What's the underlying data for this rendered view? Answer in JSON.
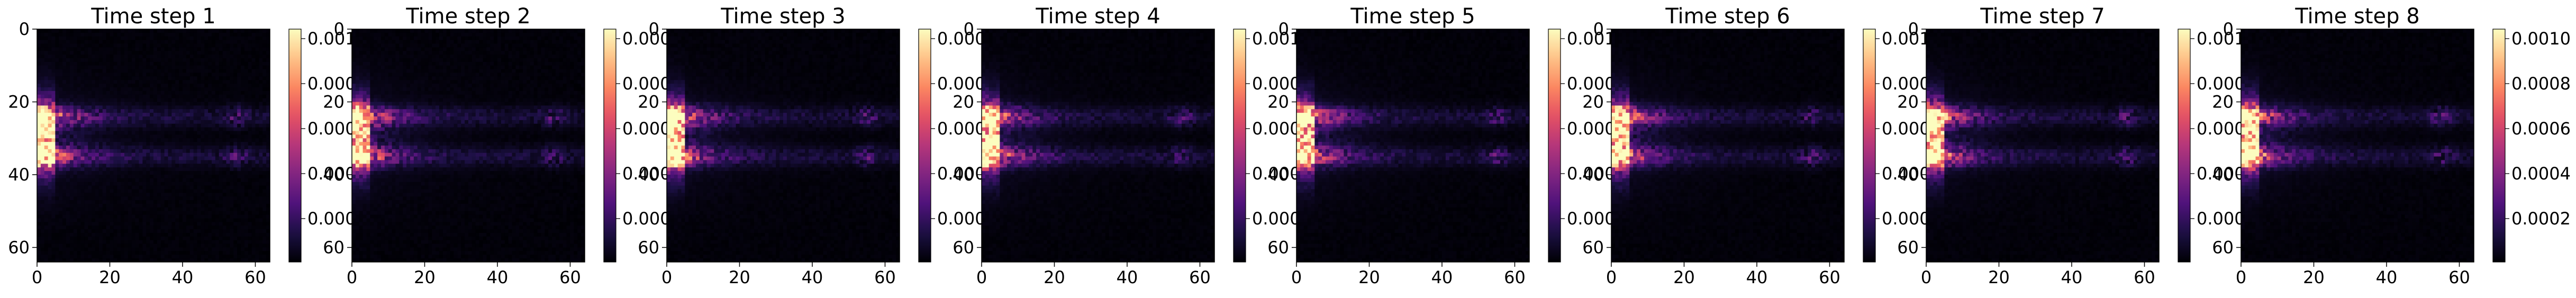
{
  "figure": {
    "background": "#ffffff"
  },
  "chart_data": [
    {
      "type": "heatmap",
      "title": "Time step 1",
      "xticks": [
        "0",
        "20",
        "40",
        "60"
      ],
      "yticks": [
        "0",
        "20",
        "40",
        "60"
      ],
      "xlim": [
        0,
        64
      ],
      "ylim": [
        64,
        0
      ],
      "colormap": "magma",
      "colorbar": {
        "ticks": [
          "0.001",
          "0.000",
          "0.000",
          "0.000",
          "0.000"
        ],
        "clipped": true
      }
    },
    {
      "type": "heatmap",
      "title": "Time step 2",
      "xticks": [
        "0",
        "20",
        "40",
        "60"
      ],
      "yticks": [
        "0",
        "20",
        "40",
        "60"
      ],
      "xlim": [
        0,
        64
      ],
      "ylim": [
        64,
        0
      ],
      "colormap": "magma",
      "colorbar": {
        "ticks": [
          "0.000",
          "0.000",
          "0.000",
          "0.000",
          "0.000"
        ],
        "clipped": true
      }
    },
    {
      "type": "heatmap",
      "title": "Time step 3",
      "xticks": [
        "0",
        "20",
        "40",
        "60"
      ],
      "yticks": [
        "0",
        "20",
        "40",
        "60"
      ],
      "xlim": [
        0,
        64
      ],
      "ylim": [
        64,
        0
      ],
      "colormap": "magma",
      "colorbar": {
        "ticks": [
          "0.000",
          "0.000",
          "0.000",
          "0.000",
          "0.000"
        ],
        "clipped": true
      }
    },
    {
      "type": "heatmap",
      "title": "Time step 4",
      "xticks": [
        "0",
        "20",
        "40",
        "60"
      ],
      "yticks": [
        "0",
        "20",
        "40",
        "60"
      ],
      "xlim": [
        0,
        64
      ],
      "ylim": [
        64,
        0
      ],
      "colormap": "magma",
      "colorbar": {
        "ticks": [
          "0.001",
          "0.000",
          "0.000",
          "0.000",
          "0.000"
        ],
        "clipped": true
      }
    },
    {
      "type": "heatmap",
      "title": "Time step 5",
      "xticks": [
        "0",
        "20",
        "40",
        "60"
      ],
      "yticks": [
        "0",
        "20",
        "40",
        "60"
      ],
      "xlim": [
        0,
        64
      ],
      "ylim": [
        64,
        0
      ],
      "colormap": "magma",
      "colorbar": {
        "ticks": [
          "0.001",
          "0.000",
          "0.000",
          "0.000",
          "0.000"
        ],
        "clipped": true
      }
    },
    {
      "type": "heatmap",
      "title": "Time step 6",
      "xticks": [
        "0",
        "20",
        "40",
        "60"
      ],
      "yticks": [
        "0",
        "20",
        "40",
        "60"
      ],
      "xlim": [
        0,
        64
      ],
      "ylim": [
        64,
        0
      ],
      "colormap": "magma",
      "colorbar": {
        "ticks": [
          "0.001",
          "0.000",
          "0.000",
          "0.000",
          "0.000"
        ],
        "clipped": true
      }
    },
    {
      "type": "heatmap",
      "title": "Time step 7",
      "xticks": [
        "0",
        "20",
        "40",
        "60"
      ],
      "yticks": [
        "0",
        "20",
        "40",
        "60"
      ],
      "xlim": [
        0,
        64
      ],
      "ylim": [
        64,
        0
      ],
      "colormap": "magma",
      "colorbar": {
        "ticks": [
          "0.001",
          "0.000",
          "0.000",
          "0.000",
          "0.000"
        ],
        "clipped": true
      }
    },
    {
      "type": "heatmap",
      "title": "Time step 8",
      "xticks": [
        "0",
        "20",
        "40",
        "60"
      ],
      "yticks": [
        "0",
        "20",
        "40",
        "60"
      ],
      "xlim": [
        0,
        64
      ],
      "ylim": [
        64,
        0
      ],
      "colormap": "magma",
      "colorbar": {
        "ticks": [
          "0.0010",
          "0.0008",
          "0.0006",
          "0.0004",
          "0.0002"
        ],
        "clipped": false
      }
    }
  ]
}
